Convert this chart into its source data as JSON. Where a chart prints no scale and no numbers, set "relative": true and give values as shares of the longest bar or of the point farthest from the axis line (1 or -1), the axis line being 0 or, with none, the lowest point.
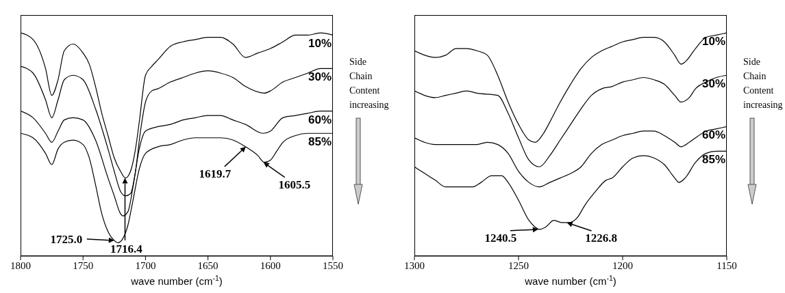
{
  "chart_data": [
    {
      "type": "line",
      "relative": true,
      "xlabel": "wave number (cm$^{-1}$)",
      "xlim": [
        1800,
        1550
      ],
      "xticks": [
        1800,
        1750,
        1700,
        1650,
        1600,
        1550
      ],
      "grid": false,
      "legend": false,
      "marker": "none",
      "line_style": "solid",
      "series": [
        {
          "name": "10%",
          "color": "#000000",
          "x": [
            1800,
            1790,
            1780,
            1775,
            1770,
            1765,
            1758,
            1750,
            1745,
            1740,
            1735,
            1730,
            1725,
            1720,
            1716,
            1712,
            1708,
            1705,
            1700,
            1695,
            1690,
            1680,
            1670,
            1660,
            1650,
            1640,
            1630,
            1620,
            1610,
            1600,
            1590,
            1580,
            1570,
            1560,
            1550
          ],
          "values": [
            1.0,
            0.97,
            0.84,
            0.72,
            0.79,
            0.92,
            0.95,
            0.91,
            0.86,
            0.76,
            0.64,
            0.54,
            0.44,
            0.38,
            0.35,
            0.38,
            0.48,
            0.6,
            0.81,
            0.85,
            0.88,
            0.94,
            0.96,
            0.97,
            0.98,
            0.98,
            0.95,
            0.89,
            0.91,
            0.93,
            0.96,
            0.99,
            0.99,
            1.0,
            0.99
          ]
        },
        {
          "name": "30%",
          "color": "#000000",
          "x": [
            1800,
            1790,
            1780,
            1775,
            1770,
            1765,
            1758,
            1750,
            1740,
            1730,
            1725,
            1720,
            1716,
            1712,
            1708,
            1704,
            1700,
            1695,
            1690,
            1680,
            1670,
            1660,
            1650,
            1640,
            1630,
            1620,
            1605,
            1600,
            1590,
            1580,
            1570,
            1560,
            1550
          ],
          "values": [
            0.85,
            0.82,
            0.7,
            0.62,
            0.7,
            0.79,
            0.81,
            0.79,
            0.66,
            0.48,
            0.38,
            0.29,
            0.27,
            0.28,
            0.38,
            0.56,
            0.69,
            0.74,
            0.75,
            0.78,
            0.8,
            0.82,
            0.83,
            0.82,
            0.8,
            0.76,
            0.73,
            0.74,
            0.78,
            0.8,
            0.82,
            0.84,
            0.84
          ]
        },
        {
          "name": "60%",
          "color": "#000000",
          "x": [
            1800,
            1790,
            1780,
            1775,
            1770,
            1765,
            1758,
            1750,
            1740,
            1730,
            1725,
            1720,
            1718,
            1714,
            1710,
            1705,
            1700,
            1690,
            1680,
            1670,
            1660,
            1650,
            1640,
            1630,
            1620,
            1606,
            1600,
            1590,
            1580,
            1570,
            1560,
            1550
          ],
          "values": [
            0.65,
            0.62,
            0.55,
            0.51,
            0.56,
            0.61,
            0.62,
            0.61,
            0.52,
            0.35,
            0.27,
            0.19,
            0.18,
            0.2,
            0.31,
            0.48,
            0.56,
            0.58,
            0.59,
            0.61,
            0.62,
            0.63,
            0.63,
            0.61,
            0.59,
            0.55,
            0.56,
            0.62,
            0.63,
            0.64,
            0.65,
            0.65
          ]
        },
        {
          "name": "85%",
          "color": "#000000",
          "x": [
            1800,
            1790,
            1780,
            1775,
            1770,
            1765,
            1758,
            1750,
            1745,
            1740,
            1735,
            1730,
            1725,
            1722,
            1718,
            1714,
            1710,
            1705,
            1700,
            1690,
            1680,
            1670,
            1660,
            1650,
            1640,
            1630,
            1620,
            1610,
            1605,
            1600,
            1595,
            1590,
            1580,
            1570,
            1560,
            1550
          ],
          "values": [
            0.55,
            0.53,
            0.46,
            0.41,
            0.48,
            0.51,
            0.52,
            0.5,
            0.44,
            0.32,
            0.19,
            0.11,
            0.07,
            0.06,
            0.08,
            0.14,
            0.25,
            0.39,
            0.46,
            0.49,
            0.5,
            0.52,
            0.53,
            0.53,
            0.53,
            0.52,
            0.49,
            0.45,
            0.42,
            0.43,
            0.47,
            0.51,
            0.54,
            0.55,
            0.55,
            0.55
          ]
        }
      ],
      "annotations": [
        {
          "text": "1725.0",
          "x": 1725,
          "y": 0.07
        },
        {
          "text": "1716.4",
          "x": 1716.4,
          "y": 0.35
        },
        {
          "text": "1619.7",
          "x": 1619.7,
          "y": 0.49
        },
        {
          "text": "1605.5",
          "x": 1605.5,
          "y": 0.42
        },
        "Side Chain Content increasing"
      ]
    },
    {
      "type": "line",
      "relative": true,
      "xlabel": "wave number (cm$^{-1}$)",
      "xlim": [
        1300,
        1150
      ],
      "xticks": [
        1300,
        1250,
        1200,
        1150
      ],
      "grid": false,
      "legend": false,
      "marker": "none",
      "line_style": "solid",
      "series": [
        {
          "name": "10%",
          "color": "#000000",
          "x": [
            1300,
            1295,
            1290,
            1285,
            1280,
            1275,
            1270,
            1265,
            1260,
            1255,
            1250,
            1245,
            1242,
            1238,
            1235,
            1230,
            1225,
            1220,
            1215,
            1210,
            1205,
            1200,
            1195,
            1190,
            1185,
            1180,
            1175,
            1172,
            1170,
            1165,
            1160,
            1155,
            1150
          ],
          "values": [
            0.92,
            0.9,
            0.89,
            0.9,
            0.93,
            0.93,
            0.92,
            0.9,
            0.81,
            0.69,
            0.59,
            0.52,
            0.51,
            0.55,
            0.6,
            0.69,
            0.77,
            0.84,
            0.89,
            0.92,
            0.94,
            0.96,
            0.97,
            0.98,
            0.98,
            0.96,
            0.9,
            0.86,
            0.87,
            0.93,
            0.98,
            0.99,
            1.0
          ]
        },
        {
          "name": "30%",
          "color": "#000000",
          "x": [
            1300,
            1290,
            1285,
            1280,
            1275,
            1270,
            1260,
            1255,
            1250,
            1245,
            1240,
            1235,
            1230,
            1225,
            1220,
            1215,
            1210,
            1205,
            1200,
            1195,
            1190,
            1185,
            1180,
            1175,
            1172,
            1168,
            1165,
            1160,
            1155,
            1150
          ],
          "values": [
            0.74,
            0.71,
            0.72,
            0.73,
            0.74,
            0.73,
            0.72,
            0.64,
            0.53,
            0.43,
            0.4,
            0.45,
            0.52,
            0.59,
            0.66,
            0.72,
            0.75,
            0.76,
            0.78,
            0.79,
            0.8,
            0.79,
            0.77,
            0.72,
            0.69,
            0.71,
            0.75,
            0.78,
            0.8,
            0.81
          ]
        },
        {
          "name": "60%",
          "color": "#000000",
          "x": [
            1300,
            1290,
            1285,
            1280,
            1275,
            1270,
            1265,
            1260,
            1255,
            1250,
            1245,
            1240,
            1235,
            1230,
            1225,
            1220,
            1215,
            1210,
            1205,
            1200,
            1195,
            1190,
            1185,
            1180,
            1175,
            1172,
            1168,
            1165,
            1160,
            1155,
            1150
          ],
          "values": [
            0.53,
            0.5,
            0.5,
            0.5,
            0.5,
            0.5,
            0.51,
            0.5,
            0.46,
            0.38,
            0.33,
            0.31,
            0.33,
            0.35,
            0.37,
            0.4,
            0.46,
            0.5,
            0.52,
            0.54,
            0.55,
            0.56,
            0.56,
            0.54,
            0.51,
            0.49,
            0.51,
            0.53,
            0.56,
            0.57,
            0.58
          ]
        },
        {
          "name": "85%",
          "color": "#000000",
          "x": [
            1300,
            1295,
            1290,
            1285,
            1280,
            1275,
            1272,
            1268,
            1263,
            1258,
            1255,
            1250,
            1245,
            1242,
            1240,
            1237,
            1233,
            1229,
            1226,
            1222,
            1218,
            1213,
            1208,
            1205,
            1200,
            1195,
            1190,
            1185,
            1180,
            1175,
            1173,
            1170,
            1165,
            1160,
            1155,
            1150
          ],
          "values": [
            0.4,
            0.37,
            0.34,
            0.31,
            0.31,
            0.31,
            0.31,
            0.33,
            0.36,
            0.36,
            0.33,
            0.25,
            0.16,
            0.13,
            0.12,
            0.13,
            0.16,
            0.15,
            0.15,
            0.17,
            0.23,
            0.29,
            0.34,
            0.35,
            0.4,
            0.44,
            0.45,
            0.44,
            0.41,
            0.35,
            0.33,
            0.35,
            0.42,
            0.46,
            0.47,
            0.47
          ]
        }
      ],
      "annotations": [
        {
          "text": "1240.5",
          "x": 1240.5,
          "y": 0.12
        },
        {
          "text": "1226.8",
          "x": 1226.8,
          "y": 0.15
        },
        "Side Chain Content increasing"
      ]
    }
  ]
}
